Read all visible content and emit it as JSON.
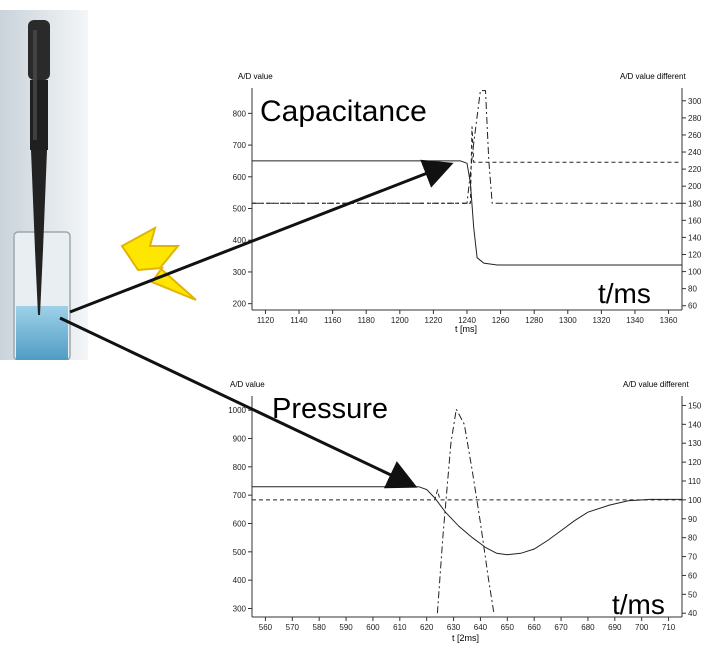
{
  "colors": {
    "accent_bolt": "#ffe600",
    "bolt_outline": "#e0b400",
    "liquid": "#6fb6d6",
    "pipette": "#2a2a2a",
    "line": "#222222"
  },
  "icons": [
    "pipette-photo",
    "lightning-bolt-icon"
  ],
  "chart_data": [
    {
      "type": "line",
      "title": "Capacitance",
      "xlabel": "t [ms]",
      "ylabel": "A/D value",
      "y2label": "A/D value different",
      "corner_label": "t/ms",
      "xlim": [
        1112,
        1368
      ],
      "ylim": [
        180,
        880
      ],
      "y2lim": [
        55,
        315
      ],
      "x_ticks": [
        1120,
        1140,
        1160,
        1180,
        1200,
        1220,
        1240,
        1260,
        1280,
        1300,
        1320,
        1340,
        1360
      ],
      "y_ticks": [
        200,
        300,
        400,
        500,
        600,
        700,
        800
      ],
      "y2_ticks": [
        60,
        80,
        100,
        120,
        140,
        160,
        180,
        200,
        220,
        240,
        260,
        280,
        300
      ],
      "series": [
        {
          "style": "solid",
          "axis": "left",
          "x": [
            1112,
            1236,
            1240,
            1242,
            1244,
            1246,
            1250,
            1258,
            1280,
            1368
          ],
          "y": [
            650,
            650,
            643,
            580,
            440,
            345,
            328,
            322,
            322,
            322
          ]
        },
        {
          "style": "dashed",
          "axis": "right",
          "x": [
            1112,
            1242,
            1243,
            1244,
            1368
          ],
          "y": [
            180,
            180,
            270,
            228,
            228
          ]
        },
        {
          "style": "dashdot",
          "axis": "right",
          "x": [
            1112,
            1240,
            1244,
            1248,
            1251,
            1253,
            1255,
            1368
          ],
          "y": [
            180,
            180,
            250,
            312,
            312,
            230,
            180,
            180
          ]
        }
      ]
    },
    {
      "type": "line",
      "title": "Pressure",
      "xlabel": "t [2ms]",
      "ylabel": "A/D value",
      "y2label": "A/D value different",
      "corner_label": "t/ms",
      "xlim": [
        555,
        715
      ],
      "ylim": [
        270,
        1050
      ],
      "y2lim": [
        38,
        155
      ],
      "x_ticks": [
        560,
        570,
        580,
        590,
        600,
        610,
        620,
        630,
        640,
        650,
        660,
        670,
        680,
        690,
        700,
        710
      ],
      "y_ticks": [
        300,
        400,
        500,
        600,
        700,
        800,
        900,
        1000
      ],
      "y2_ticks": [
        40,
        50,
        60,
        70,
        80,
        90,
        100,
        110,
        120,
        130,
        140,
        150
      ],
      "series": [
        {
          "style": "solid",
          "axis": "left",
          "x": [
            555,
            617,
            620,
            623,
            627,
            632,
            637,
            642,
            646,
            650,
            655,
            660,
            665,
            670,
            675,
            680,
            688,
            695,
            703,
            715
          ],
          "y": [
            730,
            730,
            720,
            690,
            640,
            590,
            550,
            515,
            495,
            490,
            495,
            510,
            540,
            575,
            610,
            640,
            665,
            680,
            685,
            685
          ]
        },
        {
          "style": "dashed",
          "axis": "right",
          "x": [
            555,
            623,
            624,
            625,
            715
          ],
          "y": [
            100,
            100,
            105,
            100,
            100
          ]
        },
        {
          "style": "dashdot",
          "axis": "right",
          "x": [
            624,
            626,
            629,
            631,
            634,
            637,
            640,
            643,
            645
          ],
          "y": [
            40,
            80,
            130,
            148,
            140,
            115,
            88,
            58,
            40
          ]
        }
      ]
    }
  ]
}
